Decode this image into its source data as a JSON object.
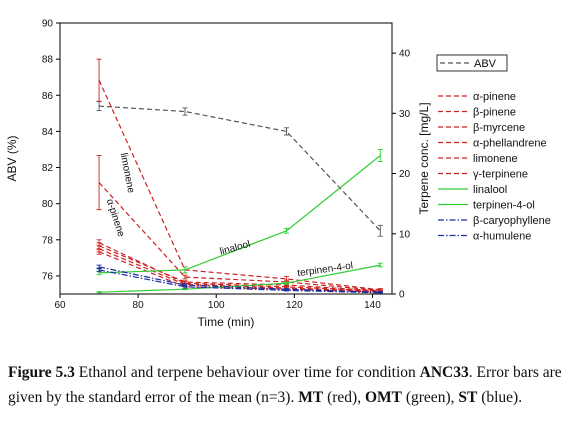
{
  "chart_data": {
    "type": "line",
    "x_axis": {
      "label": "Time (min)",
      "range": [
        60,
        145
      ],
      "ticks": [
        60,
        80,
        100,
        120,
        140
      ]
    },
    "y_axis_left": {
      "label": "ABV (%)",
      "range": [
        75,
        90
      ],
      "ticks": [
        76,
        78,
        80,
        82,
        84,
        86,
        88,
        90
      ]
    },
    "y_axis_right": {
      "label": "Terpene conc. [mg/L]",
      "range": [
        0,
        45
      ],
      "ticks": [
        0,
        10,
        20,
        30,
        40
      ]
    },
    "legend": {
      "placement": "right",
      "items": [
        {
          "label": "ABV",
          "color": "#555555",
          "dash": "dash"
        },
        {
          "label": "α-pinene",
          "color": "#cc2222",
          "dash": "dash"
        },
        {
          "label": "β-pinene",
          "color": "#cc2222",
          "dash": "dash"
        },
        {
          "label": "β-myrcene",
          "color": "#cc2222",
          "dash": "dash"
        },
        {
          "label": "α-phellandrene",
          "color": "#cc2222",
          "dash": "dash"
        },
        {
          "label": "limonene",
          "color": "#cc2222",
          "dash": "dash"
        },
        {
          "label": "γ-terpinene",
          "color": "#cc2222",
          "dash": "dash"
        },
        {
          "label": "linalool",
          "color": "#33cc33",
          "dash": "solid"
        },
        {
          "label": "terpinen-4-ol",
          "color": "#33cc33",
          "dash": "solid"
        },
        {
          "label": "β-caryophyllene",
          "color": "#1a2f9e",
          "dash": "dashdot"
        },
        {
          "label": "α-humulene",
          "color": "#1a2f9e",
          "dash": "dashdot"
        }
      ]
    },
    "annotations": [
      {
        "text": "limonene",
        "x": 76.5,
        "y_right": 20,
        "angle": 79
      },
      {
        "text": "α-pinene",
        "x": 73.5,
        "y_right": 12.5,
        "angle": 72
      },
      {
        "text": "linalool",
        "x": 105,
        "y_right": 7.2,
        "angle": -15
      },
      {
        "text": "terpinen-4-ol",
        "x": 128,
        "y_right": 3.6,
        "angle": -8
      }
    ],
    "series": [
      {
        "name": "ABV",
        "axis": "left",
        "color": "#555555",
        "dash": "dash",
        "x": [
          70,
          92,
          118,
          142
        ],
        "y": [
          85.4,
          85.1,
          84.0,
          78.5
        ],
        "err": [
          0.25,
          0.2,
          0.2,
          0.3
        ]
      },
      {
        "name": "α-pinene",
        "axis": "right",
        "color": "#cc2222",
        "dash": "dash",
        "x": [
          70,
          92,
          118,
          142
        ],
        "y": [
          18.5,
          2.8,
          2.0,
          0.6
        ],
        "err": [
          4.5,
          0.3,
          0.3,
          0.2
        ]
      },
      {
        "name": "β-pinene",
        "axis": "right",
        "color": "#cc2222",
        "dash": "dash",
        "x": [
          70,
          92,
          118,
          142
        ],
        "y": [
          8.5,
          1.8,
          1.2,
          0.5
        ],
        "err": [
          0.5,
          0.3,
          0.2,
          0.1
        ]
      },
      {
        "name": "β-myrcene",
        "axis": "right",
        "color": "#cc2222",
        "dash": "dash",
        "x": [
          70,
          92,
          118,
          142
        ],
        "y": [
          8.0,
          2.0,
          1.5,
          0.5
        ],
        "err": [
          0.5,
          0.2,
          0.2,
          0.1
        ]
      },
      {
        "name": "α-phellandrene",
        "axis": "right",
        "color": "#cc2222",
        "dash": "dash",
        "x": [
          70,
          92,
          118,
          142
        ],
        "y": [
          7.5,
          1.6,
          1.0,
          0.4
        ],
        "err": [
          0.5,
          0.2,
          0.2,
          0.1
        ]
      },
      {
        "name": "limonene",
        "axis": "right",
        "color": "#cc2222",
        "dash": "dash",
        "x": [
          70,
          92,
          118,
          142
        ],
        "y": [
          35.5,
          4.0,
          2.5,
          0.7
        ],
        "err": [
          3.5,
          0.5,
          0.4,
          0.2
        ]
      },
      {
        "name": "γ-terpinene",
        "axis": "right",
        "color": "#cc2222",
        "dash": "dash",
        "x": [
          70,
          92,
          118,
          142
        ],
        "y": [
          7.0,
          1.2,
          0.8,
          0.3
        ],
        "err": [
          0.4,
          0.2,
          0.2,
          0.1
        ]
      },
      {
        "name": "linalool",
        "axis": "right",
        "color": "#33cc33",
        "dash": "solid",
        "x": [
          70,
          92,
          118,
          142
        ],
        "y": [
          3.5,
          4.0,
          10.5,
          23.0
        ],
        "err": [
          0.3,
          0.5,
          0.4,
          1.0
        ]
      },
      {
        "name": "terpinen-4-ol",
        "axis": "right",
        "color": "#33cc33",
        "dash": "solid",
        "x": [
          70,
          92,
          118,
          142
        ],
        "y": [
          0.3,
          0.8,
          1.8,
          4.8
        ],
        "err": [
          0.1,
          0.1,
          0.2,
          0.3
        ]
      },
      {
        "name": "β-caryophyllene",
        "axis": "right",
        "color": "#1a2f9e",
        "dash": "dashdot",
        "x": [
          70,
          92,
          118,
          142
        ],
        "y": [
          4.5,
          1.5,
          0.8,
          0.3
        ],
        "err": [
          0.3,
          0.2,
          0.1,
          0.1
        ]
      },
      {
        "name": "α-humulene",
        "axis": "right",
        "color": "#1a2f9e",
        "dash": "dashdot",
        "x": [
          70,
          92,
          118,
          142
        ],
        "y": [
          4.0,
          1.2,
          0.6,
          0.2
        ],
        "err": [
          0.3,
          0.2,
          0.1,
          0.1
        ]
      }
    ]
  },
  "caption": {
    "figure_label": "Figure 5.3",
    "text_1": " Ethanol and terpene behaviour over time for condition ",
    "condition": "ANC33",
    "text_2": ". Error bars are given by the standard error of the mean (n=3). ",
    "mt": "MT",
    "text_3": " (red), ",
    "omt": "OMT",
    "text_4": " (green), ",
    "st": "ST",
    "text_5": " (blue)."
  }
}
